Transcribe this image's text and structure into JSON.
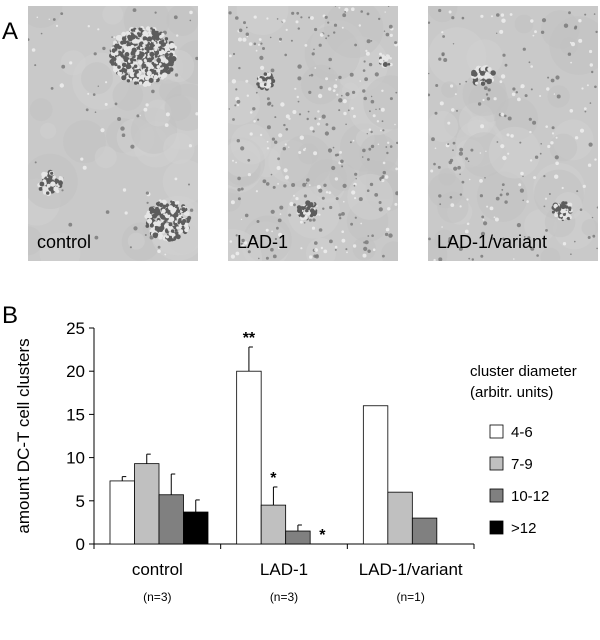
{
  "panel_a": {
    "letter": "A",
    "images": [
      {
        "label": "control"
      },
      {
        "label": "LAD-1"
      },
      {
        "label": "LAD-1/variant"
      }
    ]
  },
  "panel_b": {
    "letter": "B"
  },
  "chart_data": {
    "type": "bar",
    "ylabel": "amount DC-T cell clusters",
    "ylim": [
      0,
      25
    ],
    "yticks": [
      0,
      5,
      10,
      15,
      20,
      25
    ],
    "categories": [
      "control",
      "LAD-1",
      "LAD-1/variant"
    ],
    "category_notes": [
      "(n=3)",
      "(n=3)",
      "(n=1)"
    ],
    "legend_title": [
      "cluster diameter",
      "(arbitr. units)"
    ],
    "legend_position": "right",
    "series": [
      {
        "name": "4-6",
        "color": "#ffffff",
        "values": [
          7.3,
          20.0,
          16.0
        ],
        "errors": [
          0.5,
          2.8,
          null
        ],
        "annotations": [
          "",
          "**",
          ""
        ]
      },
      {
        "name": "7-9",
        "color": "#c0c0c0",
        "values": [
          9.3,
          4.5,
          6.0
        ],
        "errors": [
          1.1,
          2.1,
          null
        ],
        "annotations": [
          "",
          "*",
          ""
        ]
      },
      {
        "name": "10-12",
        "color": "#808080",
        "values": [
          5.7,
          1.5,
          3.0
        ],
        "errors": [
          2.4,
          0.7,
          null
        ],
        "annotations": [
          "",
          "",
          ""
        ]
      },
      {
        "name": ">12",
        "color": "#000000",
        "values": [
          3.7,
          0.0,
          0.0
        ],
        "errors": [
          1.4,
          null,
          null
        ],
        "annotations": [
          "",
          "*",
          ""
        ]
      }
    ]
  }
}
